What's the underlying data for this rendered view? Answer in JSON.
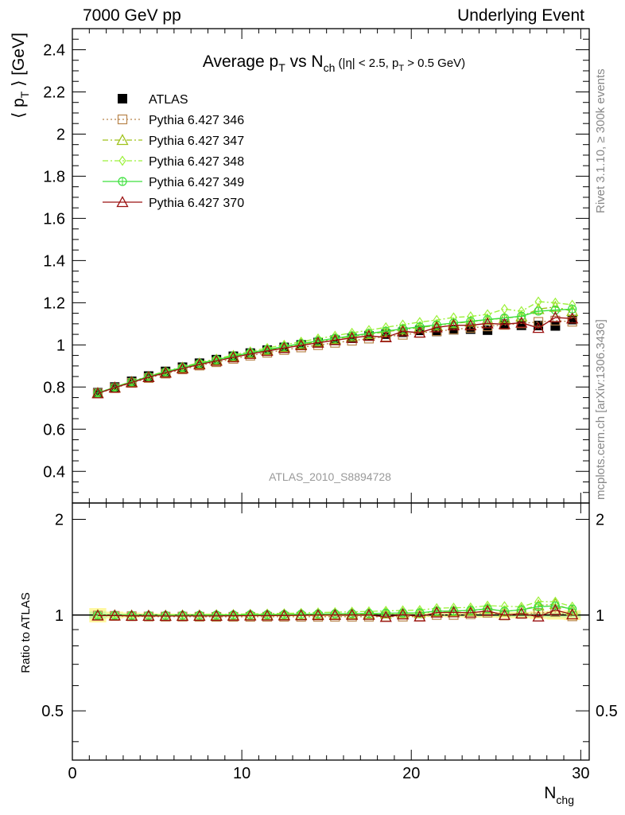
{
  "header": {
    "left": "7000 GeV pp",
    "right": "Underlying Event"
  },
  "side_labels": {
    "rivet": "Rivet 3.1.10, ≥ 300k events",
    "mcplots": "mcplots.cern.ch [arXiv:1306.3436]"
  },
  "chart_data": {
    "type": "scatter",
    "title": "Average p_T vs N_ch (|η| < 2.5, p_T > 0.5 GeV)",
    "analysis_label": "ATLAS_2010_S8894728",
    "main_panel": {
      "ylabel": "⟨ p_T ⟩ [GeV]",
      "ylim": [
        0.25,
        2.5
      ],
      "yticks": [
        "0.4",
        "0.6",
        "0.8",
        "1",
        "1.2",
        "1.4",
        "1.6",
        "1.8",
        "2",
        "2.2",
        "2.4"
      ]
    },
    "ratio_panel": {
      "ylabel": "Ratio to ATLAS",
      "ylim": [
        0.35,
        2.25
      ],
      "yticks": [
        "0.5",
        "1",
        "2"
      ]
    },
    "xlabel": "N_chg",
    "xlim": [
      0,
      30.5
    ],
    "xticks": [
      "0",
      "10",
      "20",
      "30"
    ],
    "x": [
      1.5,
      2.5,
      3.5,
      4.5,
      5.5,
      6.5,
      7.5,
      8.5,
      9.5,
      10.5,
      11.5,
      12.5,
      13.5,
      14.5,
      15.5,
      16.5,
      17.5,
      18.5,
      19.5,
      20.5,
      21.5,
      22.5,
      23.5,
      24.5,
      25.5,
      26.5,
      27.5,
      28.5,
      29.5
    ],
    "data": {
      "name": "ATLAS",
      "values": [
        0.773,
        0.8,
        0.827,
        0.852,
        0.874,
        0.894,
        0.913,
        0.93,
        0.946,
        0.961,
        0.975,
        0.988,
        1.0,
        1.011,
        1.022,
        1.032,
        1.042,
        1.051,
        1.06,
        1.069,
        1.064,
        1.072,
        1.075,
        1.07,
        1.098,
        1.093,
        1.092,
        1.09,
        1.12
      ],
      "errors": [
        0.04,
        0.02,
        0.015,
        0.012,
        0.01,
        0.01,
        0.01,
        0.01,
        0.01,
        0.01,
        0.01,
        0.01,
        0.01,
        0.01,
        0.01,
        0.01,
        0.01,
        0.012,
        0.012,
        0.015,
        0.015,
        0.018,
        0.02,
        0.02,
        0.025,
        0.025,
        0.03,
        0.035,
        0.04
      ],
      "color": "#000000"
    },
    "series": [
      {
        "name": "Pythia 6.427 346",
        "color": "#b8844a",
        "dash": "2,3",
        "marker": "open-square",
        "values": [
          0.77,
          0.795,
          0.82,
          0.843,
          0.864,
          0.884,
          0.902,
          0.918,
          0.934,
          0.949,
          0.963,
          0.976,
          0.988,
          0.999,
          1.01,
          1.02,
          1.03,
          1.039,
          1.048,
          1.057,
          1.065,
          1.073,
          1.081,
          1.088,
          1.095,
          1.102,
          1.109,
          1.115,
          1.11
        ]
      },
      {
        "name": "Pythia 6.427 347",
        "color": "#9fc21a",
        "dash": "7,3,2,3",
        "marker": "open-triangle",
        "values": [
          0.772,
          0.798,
          0.824,
          0.848,
          0.87,
          0.891,
          0.91,
          0.928,
          0.945,
          0.961,
          0.976,
          0.99,
          1.003,
          1.016,
          1.028,
          1.04,
          1.051,
          1.062,
          1.073,
          1.083,
          1.092,
          1.102,
          1.11,
          1.119,
          1.127,
          1.135,
          1.17,
          1.18,
          1.16
        ]
      },
      {
        "name": "Pythia 6.427 348",
        "color": "#9cf13a",
        "dash": "7,3,2,3",
        "marker": "open-diamond",
        "values": [
          0.773,
          0.8,
          0.827,
          0.852,
          0.875,
          0.896,
          0.916,
          0.934,
          0.952,
          0.969,
          0.985,
          1.0,
          1.015,
          1.03,
          1.043,
          1.057,
          1.07,
          1.083,
          1.096,
          1.108,
          1.118,
          1.13,
          1.135,
          1.145,
          1.17,
          1.16,
          1.205,
          1.2,
          1.19
        ]
      },
      {
        "name": "Pythia 6.427 349",
        "color": "#3de03d",
        "dash": "",
        "marker": "open-circle-cross",
        "values": [
          0.772,
          0.799,
          0.825,
          0.85,
          0.872,
          0.893,
          0.912,
          0.93,
          0.947,
          0.963,
          0.978,
          0.992,
          1.006,
          1.019,
          1.031,
          1.043,
          1.054,
          1.065,
          1.076,
          1.086,
          1.095,
          1.104,
          1.112,
          1.12,
          1.128,
          1.136,
          1.16,
          1.165,
          1.17
        ]
      },
      {
        "name": "Pythia 6.427 370",
        "color": "#9a1010",
        "dash": "",
        "marker": "open-triangle",
        "values": [
          0.77,
          0.797,
          0.822,
          0.847,
          0.868,
          0.888,
          0.907,
          0.924,
          0.941,
          0.957,
          0.971,
          0.985,
          0.998,
          1.01,
          1.022,
          1.033,
          1.043,
          1.036,
          1.064,
          1.058,
          1.083,
          1.093,
          1.093,
          1.102,
          1.098,
          1.105,
          1.08,
          1.13,
          1.125
        ]
      }
    ]
  }
}
